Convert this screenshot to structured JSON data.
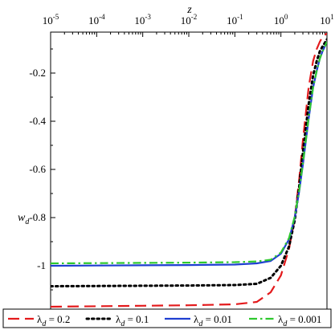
{
  "chart_data": {
    "type": "line",
    "x_scale": "log",
    "xlabel": "z",
    "ylabel": "w_d",
    "xlim": [
      1e-05,
      10
    ],
    "ylim": [
      -1.18,
      -0.03
    ],
    "x_ticks": [
      {
        "value": 1e-05,
        "base": "10",
        "exp": "-5"
      },
      {
        "value": 0.0001,
        "base": "10",
        "exp": "-4"
      },
      {
        "value": 0.001,
        "base": "10",
        "exp": "-3"
      },
      {
        "value": 0.01,
        "base": "10",
        "exp": "-2"
      },
      {
        "value": 0.1,
        "base": "10",
        "exp": "-1"
      },
      {
        "value": 1,
        "base": "10",
        "exp": "0"
      },
      {
        "value": 10,
        "base": "10",
        "exp": "1"
      }
    ],
    "y_ticks": [
      {
        "value": -1.0,
        "label": "-1"
      },
      {
        "value": -0.8,
        "label": "-0.8"
      },
      {
        "value": -0.6,
        "label": "-0.6"
      },
      {
        "value": -0.4,
        "label": "-0.4"
      },
      {
        "value": -0.2,
        "label": "-0.2"
      }
    ],
    "legend_position": "bottom",
    "series": [
      {
        "name": "λ_d = 0.2",
        "greek": "λ",
        "sub": "d",
        "value_text": " = 0.2",
        "color": "#e31a1c",
        "dash": "long-dash",
        "x": [
          1e-05,
          0.0001,
          0.001,
          0.01,
          0.1,
          0.3,
          0.6,
          1.0,
          1.5,
          2.0,
          2.5,
          3.0,
          4.0,
          5.0,
          6.0,
          7.0,
          8.0,
          10.0
        ],
        "y": [
          -1.17,
          -1.168,
          -1.166,
          -1.164,
          -1.16,
          -1.15,
          -1.11,
          -1.04,
          -0.93,
          -0.8,
          -0.64,
          -0.48,
          -0.26,
          -0.15,
          -0.1,
          -0.07,
          -0.05,
          -0.035
        ]
      },
      {
        "name": "λ_d = 0.1",
        "greek": "λ",
        "sub": "d",
        "value_text": " = 0.1",
        "color": "#000000",
        "dash": "dotted",
        "x": [
          1e-05,
          0.0001,
          0.001,
          0.01,
          0.1,
          0.3,
          0.6,
          1.0,
          1.5,
          2.0,
          2.5,
          3.0,
          4.0,
          5.0,
          6.0,
          7.0,
          8.0,
          10.0
        ],
        "y": [
          -1.085,
          -1.084,
          -1.083,
          -1.082,
          -1.08,
          -1.075,
          -1.05,
          -1.0,
          -0.92,
          -0.81,
          -0.67,
          -0.53,
          -0.33,
          -0.21,
          -0.15,
          -0.11,
          -0.09,
          -0.06
        ]
      },
      {
        "name": "λ_d = 0.01",
        "greek": "λ",
        "sub": "d",
        "value_text": " = 0.01",
        "color": "#1f3fd1",
        "dash": "solid",
        "x": [
          1e-05,
          0.0001,
          0.001,
          0.01,
          0.1,
          0.3,
          0.6,
          1.0,
          1.5,
          2.0,
          2.5,
          3.0,
          4.0,
          5.0,
          6.0,
          7.0,
          8.0,
          10.0
        ],
        "y": [
          -1.0,
          -0.999,
          -0.998,
          -0.997,
          -0.995,
          -0.99,
          -0.98,
          -0.95,
          -0.89,
          -0.8,
          -0.69,
          -0.58,
          -0.39,
          -0.26,
          -0.19,
          -0.14,
          -0.11,
          -0.07
        ]
      },
      {
        "name": "λ_d = 0.001",
        "greek": "λ",
        "sub": "d",
        "value_text": " = 0.001",
        "color": "#2ec82e",
        "dash": "dash-dot",
        "x": [
          1e-05,
          0.0001,
          0.001,
          0.01,
          0.1,
          0.3,
          0.6,
          1.0,
          1.5,
          2.0,
          2.5,
          3.0,
          4.0,
          5.0,
          6.0,
          7.0,
          8.0,
          10.0
        ],
        "y": [
          -0.99,
          -0.989,
          -0.988,
          -0.987,
          -0.985,
          -0.982,
          -0.975,
          -0.945,
          -0.885,
          -0.795,
          -0.685,
          -0.575,
          -0.385,
          -0.26,
          -0.19,
          -0.14,
          -0.11,
          -0.07
        ]
      }
    ]
  }
}
